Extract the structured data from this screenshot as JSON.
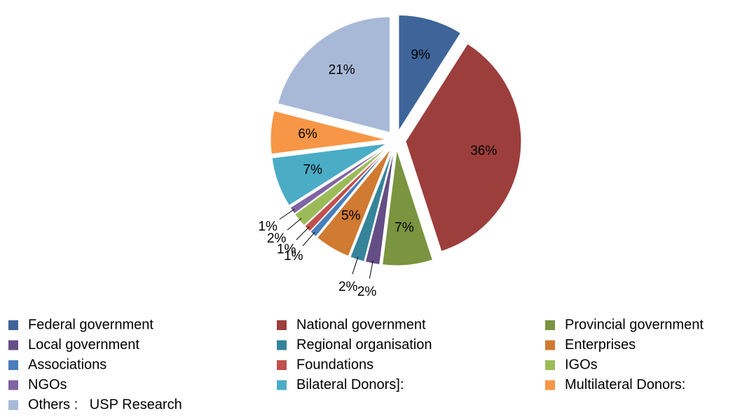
{
  "chart_data": {
    "type": "pie",
    "categories": [
      "Federal government",
      "National government",
      "Provincial government",
      "Local government",
      "Regional organisation",
      "Enterprises",
      "Associations",
      "Foundations",
      "IGOs",
      "NGOs",
      "Bilateral Donors]:",
      "Multilateral Donors:",
      "Others :   USP Research"
    ],
    "values": [
      9,
      36,
      7,
      2,
      2,
      5,
      1,
      1,
      2,
      1,
      7,
      6,
      21
    ],
    "value_labels": [
      "9%",
      "36%",
      "7%",
      "2%",
      "2%",
      "5%",
      "1%",
      "1%",
      "2%",
      "1%",
      "7%",
      "6%",
      "21%"
    ],
    "colors": [
      "#3e6499",
      "#9c3e3c",
      "#7a9440",
      "#644e85",
      "#35849a",
      "#d07a32",
      "#4a7ebb",
      "#c0504d",
      "#9bbb59",
      "#8064a2",
      "#4bacc6",
      "#f79646",
      "#a8b9d8"
    ],
    "legend": "bottom"
  }
}
